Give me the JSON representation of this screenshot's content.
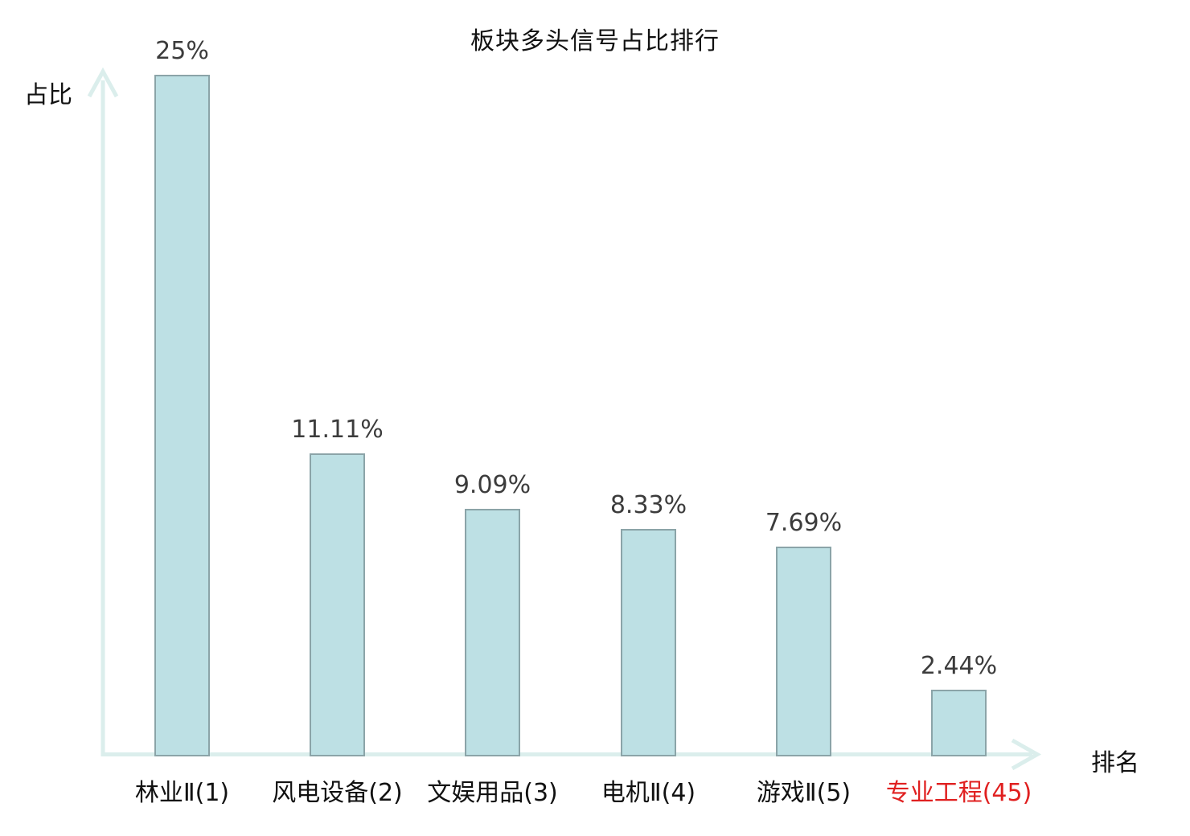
{
  "chart_data": {
    "type": "bar",
    "title": "板块多头信号占比排行",
    "xlabel": "排名",
    "ylabel": "占比",
    "categories": [
      "林业Ⅱ(1)",
      "风电设备(2)",
      "文娱用品(3)",
      "电机Ⅱ(4)",
      "游戏Ⅱ(5)",
      "专业工程(45)"
    ],
    "values": [
      25,
      11.11,
      9.09,
      8.33,
      7.69,
      2.44
    ],
    "value_labels": [
      "25%",
      "11.11%",
      "9.09%",
      "8.33%",
      "7.69%",
      "2.44%"
    ],
    "highlighted_category_index": 5,
    "ylim": [
      0,
      25
    ],
    "grid": false,
    "legend": null,
    "colors": {
      "bar_fill": "#bde0e4",
      "bar_border": "#8ba4a8",
      "axis": "#dbeeec",
      "value_text": "#3c3c3c",
      "label_text": "#111111",
      "highlight_text": "#e02020"
    }
  }
}
